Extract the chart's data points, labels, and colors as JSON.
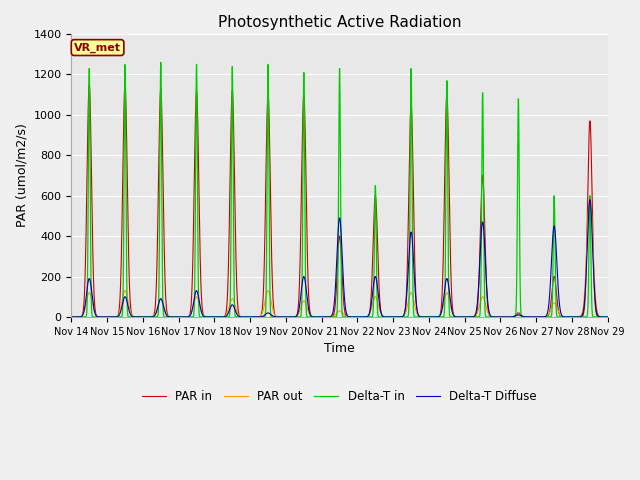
{
  "title": "Photosynthetic Active Radiation",
  "ylabel": "PAR (umol/m2/s)",
  "xlabel": "Time",
  "ylim": [
    0,
    1400
  ],
  "fig_bg_color": "#f0f0f0",
  "plot_bg_color": "#e8e8e8",
  "label_box": "VR_met",
  "legend_entries": [
    "PAR in",
    "PAR out",
    "Delta-T in",
    "Delta-T Diffuse"
  ],
  "colors": {
    "par_in": "#cc0000",
    "par_out": "#ff9900",
    "delta_t_in": "#00cc00",
    "delta_t_diffuse": "#0000bb"
  },
  "x_tick_labels": [
    "Nov 14",
    "Nov 15",
    "Nov 16",
    "Nov 17",
    "Nov 18",
    "Nov 19",
    "Nov 20",
    "Nov 21",
    "Nov 22",
    "Nov 23",
    "Nov 24",
    "Nov 25",
    "Nov 26",
    "Nov 27",
    "Nov 28",
    "Nov 29"
  ],
  "par_in_peaks": [
    1150,
    1150,
    1130,
    1120,
    1120,
    1100,
    1100,
    400,
    600,
    1050,
    1100,
    700,
    20,
    200,
    970
  ],
  "par_out_peaks": [
    120,
    130,
    90,
    100,
    90,
    130,
    80,
    30,
    100,
    120,
    120,
    100,
    10,
    70,
    600
  ],
  "delta_t_in_peaks": [
    1230,
    1250,
    1260,
    1250,
    1240,
    1250,
    1210,
    1230,
    650,
    1230,
    1170,
    1110,
    1080,
    600,
    600
  ],
  "delta_t_diff_peaks": [
    190,
    100,
    90,
    130,
    60,
    20,
    200,
    490,
    200,
    420,
    190,
    470,
    10,
    450,
    580
  ]
}
